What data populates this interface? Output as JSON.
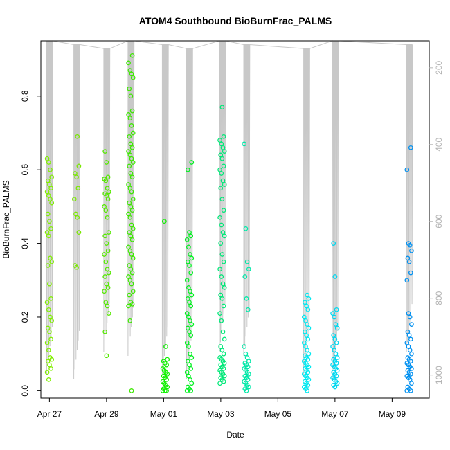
{
  "chart_data": {
    "type": "scatter",
    "title": "ATOM4 Southbound BioBurnFrac_PALMS",
    "xlabel": "Date",
    "ylabel": "BioBurnFrac_PALMS",
    "x_axis": {
      "unit": "date",
      "range_days_from_apr27": [
        -0.3,
        13.3
      ],
      "ticks": [
        {
          "label": "Apr 27",
          "day": 0
        },
        {
          "label": "Apr 29",
          "day": 2
        },
        {
          "label": "May 01",
          "day": 4
        },
        {
          "label": "May 03",
          "day": 6
        },
        {
          "label": "May 05",
          "day": 8
        },
        {
          "label": "May 07",
          "day": 10
        },
        {
          "label": "May 09",
          "day": 12
        }
      ]
    },
    "y_axis": {
      "ylim": [
        -0.02,
        0.95
      ],
      "ticks": [
        {
          "label": "0.0",
          "value": 0.0
        },
        {
          "label": "0.2",
          "value": 0.2
        },
        {
          "label": "0.4",
          "value": 0.4
        },
        {
          "label": "0.6",
          "value": 0.6
        },
        {
          "label": "0.8",
          "value": 0.8
        }
      ]
    },
    "y2_axis": {
      "description": "pressure (inverted), drawn as grey flight-track line",
      "range": [
        1060,
        130
      ],
      "ticks": [
        {
          "label": "200",
          "value": 200
        },
        {
          "label": "400",
          "value": 400
        },
        {
          "label": "600",
          "value": 600
        },
        {
          "label": "800",
          "value": 800
        },
        {
          "label": "1000",
          "value": 1000
        }
      ],
      "color": "#b4b4b4"
    },
    "grid": false,
    "legend": "none",
    "series": [
      {
        "day": 0.0,
        "color": "#80ee00",
        "y": [
          0.63,
          0.62,
          0.6,
          0.58,
          0.57,
          0.56,
          0.55,
          0.54,
          0.53,
          0.52,
          0.51,
          0.48,
          0.46,
          0.44,
          0.43,
          0.42,
          0.36,
          0.35,
          0.34,
          0.29,
          0.25,
          0.24,
          0.22,
          0.2,
          0.19,
          0.17,
          0.16,
          0.14,
          0.13,
          0.11,
          0.09,
          0.085,
          0.08,
          0.07,
          0.06,
          0.05,
          0.03
        ]
      },
      {
        "day": 0.95,
        "color": "#7ae800",
        "y": [
          0.69,
          0.61,
          0.59,
          0.58,
          0.55,
          0.52,
          0.48,
          0.47,
          0.43,
          0.34,
          0.335
        ]
      },
      {
        "day": 2.0,
        "color": "#55e800",
        "y": [
          0.65,
          0.62,
          0.58,
          0.575,
          0.57,
          0.55,
          0.54,
          0.535,
          0.53,
          0.52,
          0.5,
          0.49,
          0.47,
          0.43,
          0.42,
          0.4,
          0.38,
          0.37,
          0.35,
          0.33,
          0.32,
          0.31,
          0.29,
          0.28,
          0.27,
          0.24,
          0.23,
          0.21,
          0.16,
          0.095
        ]
      },
      {
        "day": 2.85,
        "color": "#3de800",
        "y": [
          0.91,
          0.89,
          0.87,
          0.86,
          0.85,
          0.82,
          0.8,
          0.76,
          0.75,
          0.74,
          0.72,
          0.7,
          0.69,
          0.67,
          0.66,
          0.65,
          0.64,
          0.63,
          0.62,
          0.61,
          0.59,
          0.58,
          0.56,
          0.55,
          0.54,
          0.52,
          0.51,
          0.5,
          0.49,
          0.48,
          0.47,
          0.45,
          0.44,
          0.43,
          0.42,
          0.41,
          0.39,
          0.38,
          0.37,
          0.36,
          0.34,
          0.33,
          0.32,
          0.31,
          0.3,
          0.29,
          0.27,
          0.26,
          0.24,
          0.235,
          0.23,
          0.19,
          0.0
        ]
      },
      {
        "day": 4.05,
        "color": "#0ff000",
        "y": [
          0.46,
          0.12,
          0.085,
          0.08,
          0.075,
          0.07,
          0.06,
          0.055,
          0.05,
          0.045,
          0.04,
          0.035,
          0.03,
          0.025,
          0.02,
          0.015,
          0.01,
          0.005,
          0.0,
          0.0,
          0.0
        ]
      },
      {
        "day": 4.9,
        "color": "#00f020",
        "y": [
          0.62,
          0.6,
          0.43,
          0.42,
          0.41,
          0.39,
          0.37,
          0.36,
          0.35,
          0.34,
          0.32,
          0.3,
          0.28,
          0.27,
          0.26,
          0.25,
          0.24,
          0.23,
          0.21,
          0.2,
          0.19,
          0.18,
          0.17,
          0.16,
          0.15,
          0.13,
          0.12,
          0.1,
          0.09,
          0.08,
          0.07,
          0.06,
          0.05,
          0.04,
          0.03,
          0.02,
          0.01,
          0.005,
          0.0,
          0.0
        ]
      },
      {
        "day": 6.05,
        "color": "#00e878",
        "y": [
          0.77,
          0.69,
          0.68,
          0.67,
          0.66,
          0.65,
          0.64,
          0.63,
          0.61,
          0.6,
          0.59,
          0.57,
          0.56,
          0.55,
          0.52,
          0.49,
          0.47,
          0.45,
          0.43,
          0.42,
          0.4,
          0.37,
          0.35,
          0.33,
          0.31,
          0.29,
          0.28,
          0.26,
          0.25,
          0.23,
          0.21,
          0.19,
          0.16,
          0.14,
          0.12,
          0.11,
          0.1,
          0.09,
          0.085,
          0.08,
          0.075,
          0.07,
          0.065,
          0.06,
          0.055,
          0.05,
          0.045,
          0.04,
          0.035,
          0.03,
          0.025,
          0.02
        ]
      },
      {
        "day": 6.9,
        "color": "#00e8a8",
        "y": [
          0.67,
          0.44,
          0.35,
          0.33,
          0.31,
          0.25,
          0.22,
          0.12,
          0.1,
          0.09,
          0.08,
          0.075,
          0.07,
          0.065,
          0.06,
          0.055,
          0.05,
          0.045,
          0.04,
          0.035,
          0.03,
          0.025,
          0.02,
          0.015,
          0.01,
          0.005,
          0.0
        ]
      },
      {
        "day": 9.0,
        "color": "#00e8f0",
        "y": [
          0.26,
          0.25,
          0.24,
          0.23,
          0.22,
          0.2,
          0.19,
          0.18,
          0.17,
          0.16,
          0.15,
          0.14,
          0.13,
          0.12,
          0.11,
          0.1,
          0.095,
          0.09,
          0.085,
          0.08,
          0.075,
          0.07,
          0.065,
          0.06,
          0.055,
          0.05,
          0.045,
          0.04,
          0.035,
          0.03,
          0.025,
          0.02,
          0.015,
          0.01,
          0.005,
          0.0
        ]
      },
      {
        "day": 10.0,
        "color": "#00d8f0",
        "y": [
          0.4,
          0.31,
          0.22,
          0.21,
          0.2,
          0.18,
          0.17,
          0.15,
          0.14,
          0.13,
          0.12,
          0.11,
          0.1,
          0.09,
          0.085,
          0.08,
          0.075,
          0.07,
          0.065,
          0.06,
          0.055,
          0.05,
          0.045,
          0.04,
          0.035,
          0.03,
          0.025,
          0.02,
          0.015,
          0.01
        ]
      },
      {
        "day": 12.6,
        "color": "#0090f0",
        "y": [
          0.66,
          0.6,
          0.4,
          0.395,
          0.38,
          0.36,
          0.35,
          0.32,
          0.3,
          0.21,
          0.2,
          0.18,
          0.16,
          0.15,
          0.14,
          0.13,
          0.12,
          0.11,
          0.1,
          0.09,
          0.085,
          0.08,
          0.075,
          0.07,
          0.065,
          0.06,
          0.055,
          0.05,
          0.045,
          0.04,
          0.035,
          0.03,
          0.02,
          0.01,
          0.005,
          0.0,
          0.0
        ]
      }
    ]
  }
}
